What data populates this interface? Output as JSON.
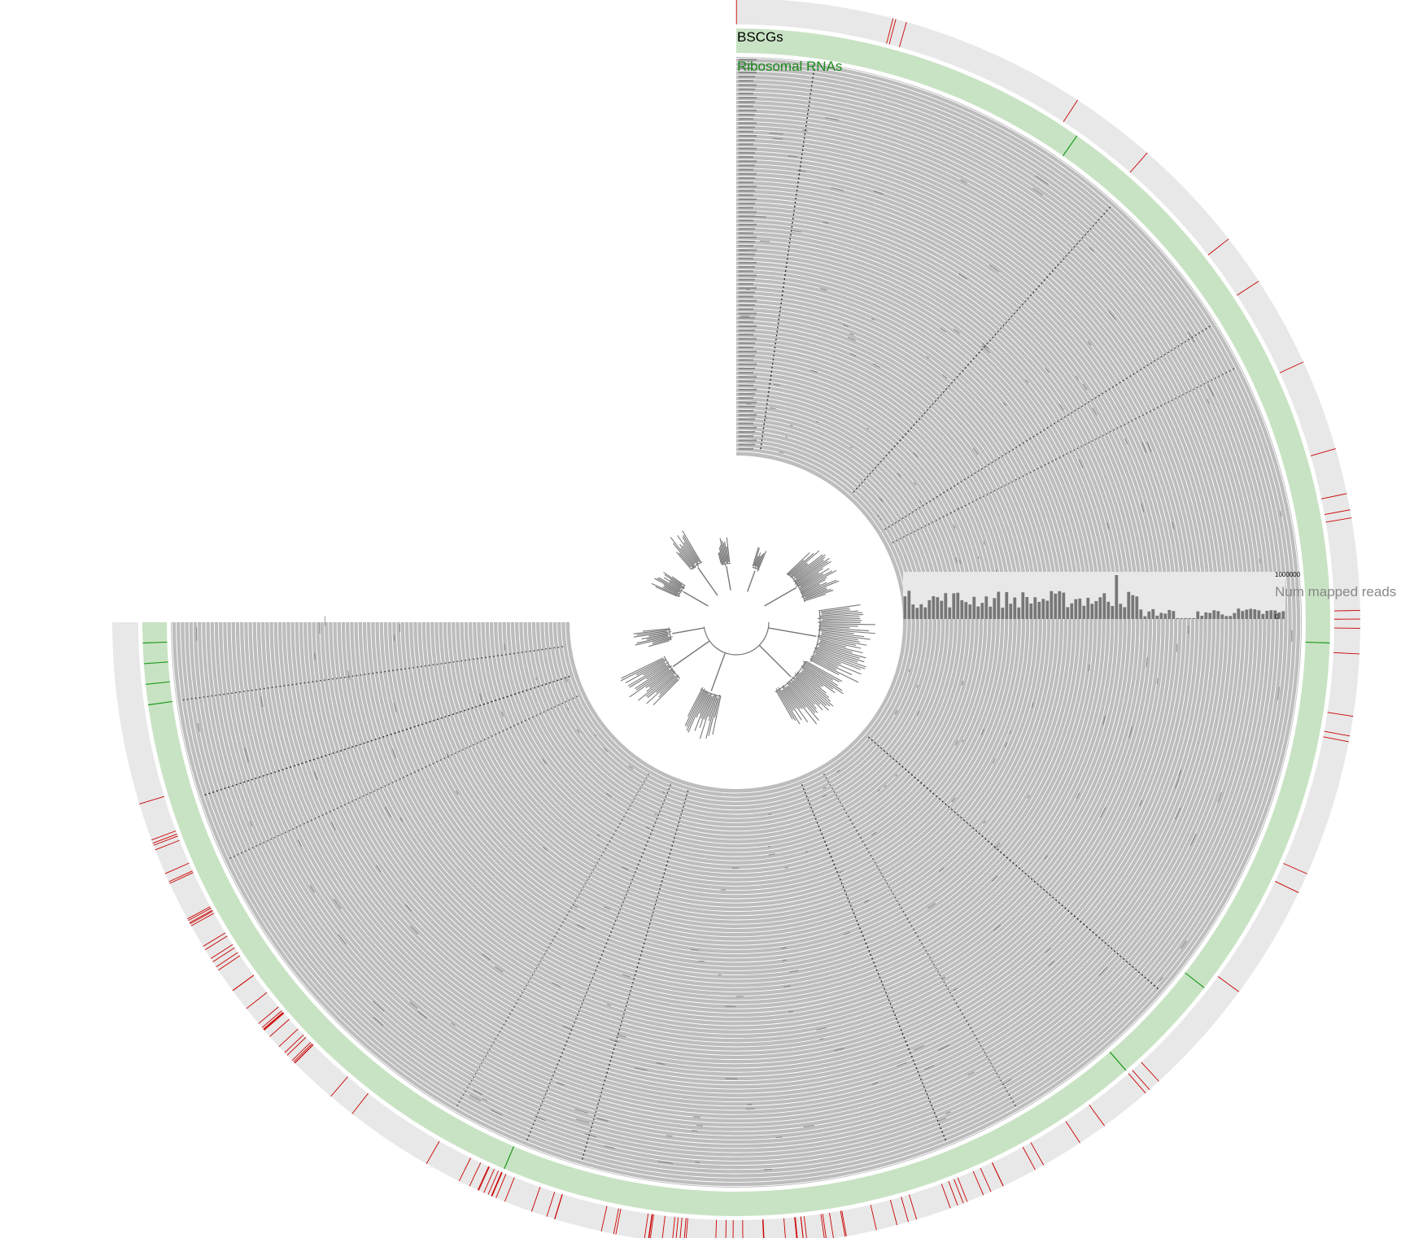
{
  "layers": {
    "bscg": {
      "label": "BSCGs",
      "text_color": "#000000",
      "track_color": "#e8e8e8",
      "mark_color": "#cc0000"
    },
    "rrna": {
      "label": "Ribosomal RNAs",
      "text_color": "#1a8a1a",
      "track_color": "#c8e3c3",
      "mark_color": "#1f9a1f"
    },
    "samples": {
      "ring_fill": "#bdbdbd",
      "separator_color": "#ffffff",
      "hit_color": "#1a1a1a"
    },
    "mapped_reads": {
      "label": "Num mapped reads",
      "text_color": "#888888",
      "max_label": "1000000",
      "min_label": "0",
      "bar_color": "#777777",
      "panel_color": "#e8e8e8"
    }
  },
  "tree": {
    "stroke_color": "#777777"
  }
}
